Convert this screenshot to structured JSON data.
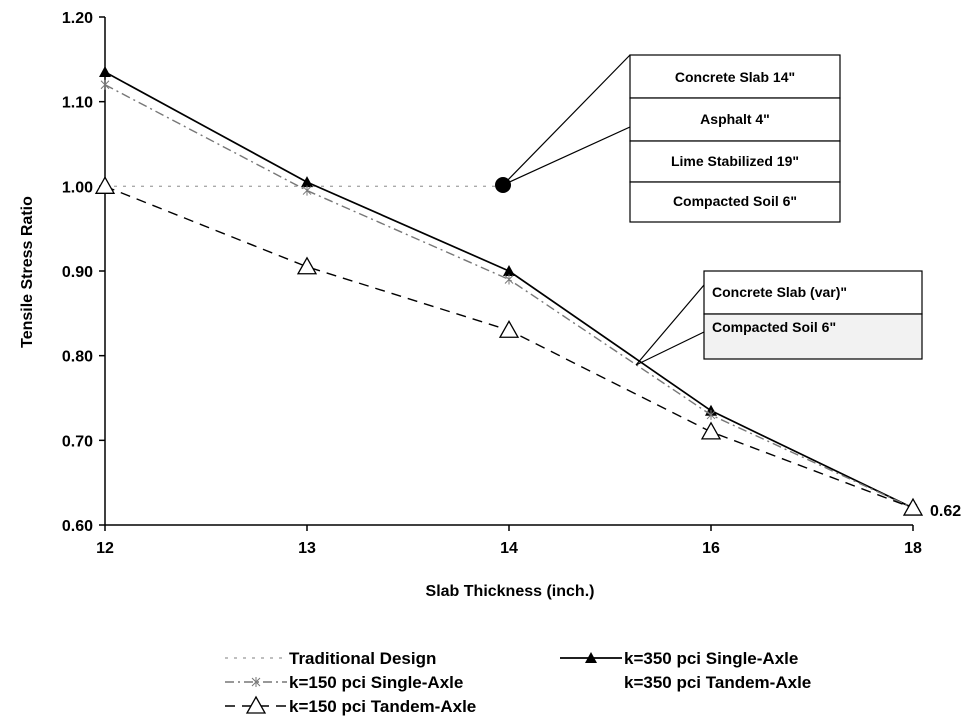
{
  "chart_data": {
    "type": "line",
    "xlabel": "Slab Thickness (inch.)",
    "ylabel": "Tensile Stress Ratio",
    "categories": [
      "12",
      "13",
      "14",
      "16",
      "18"
    ],
    "ylim": [
      0.6,
      1.2
    ],
    "yticks": [
      "0.60",
      "0.70",
      "0.80",
      "0.90",
      "1.00",
      "1.10",
      "1.20"
    ],
    "grid": false,
    "legend_position": "bottom",
    "series": [
      {
        "name": "Traditional Design",
        "values": [
          1.0,
          1.0,
          1.0,
          null,
          null
        ],
        "style": "dotted",
        "marker": "none",
        "color": "#aaaaaa"
      },
      {
        "name": "k=350 pci Single-Axle",
        "values": [
          1.135,
          1.005,
          0.9,
          0.735,
          0.62
        ],
        "style": "solid",
        "marker": "filled-triangle",
        "color": "#000000"
      },
      {
        "name": "k=150 pci Single-Axle",
        "values": [
          1.12,
          0.995,
          0.89,
          0.73,
          0.62
        ],
        "style": "dash-dot",
        "marker": "star",
        "color": "#777777"
      },
      {
        "name": "k=350 pci Tandem-Axle",
        "values": [
          null,
          null,
          null,
          null,
          null
        ],
        "style": "none",
        "marker": "none",
        "color": "#cccccc"
      },
      {
        "name": "k=150 pci Tandem-Axle",
        "values": [
          1.0,
          0.905,
          0.83,
          0.71,
          0.62
        ],
        "style": "dashed",
        "marker": "open-triangle",
        "color": "#000000"
      }
    ],
    "annotations": {
      "end_value": "0.62",
      "traditional_boxes": [
        "Concrete Slab 14\"",
        "Asphalt 4\"",
        "Lime Stabilized 19\"",
        "Compacted Soil 6\""
      ],
      "proposed_boxes": [
        "Concrete Slab  (var)\"",
        "Compacted Soil 6\""
      ]
    }
  }
}
